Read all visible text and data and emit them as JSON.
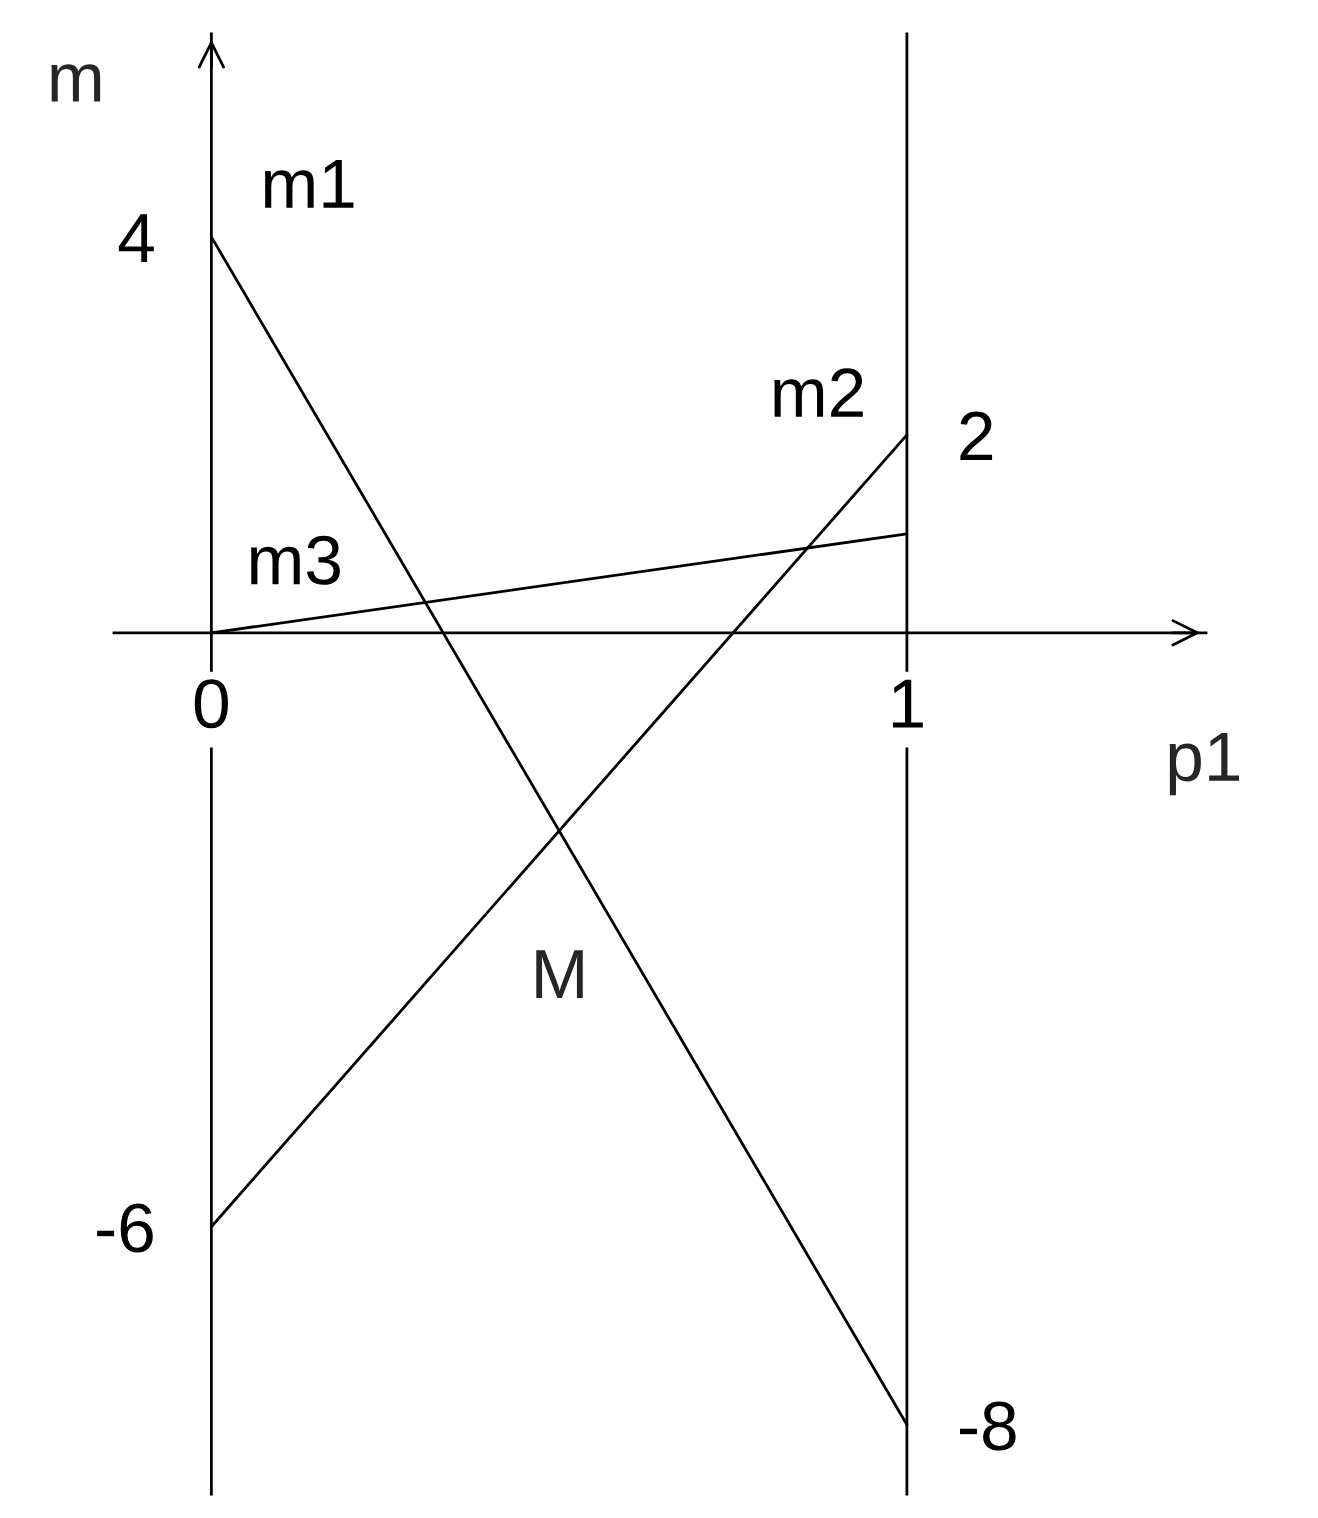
{
  "chart_data": {
    "type": "line",
    "xlabel": "p1",
    "ylabel": "m",
    "x": [
      0,
      1
    ],
    "series": [
      {
        "name": "m1",
        "color": "#000000",
        "values": [
          4,
          -8
        ]
      },
      {
        "name": "m2",
        "color": "#000000",
        "values": [
          -6,
          2
        ]
      },
      {
        "name": "m3",
        "color": "#000000",
        "values": [
          0,
          1
        ]
      }
    ],
    "xlim": [
      -0.14,
      1.43
    ],
    "ylim": [
      -8.7,
      6.05
    ],
    "xticks": [
      0,
      1
    ],
    "yticks": [
      -6,
      4
    ],
    "y2lim": [
      -8.7,
      6.05
    ],
    "y2ticks": [
      -8,
      2
    ],
    "line_style": "solid",
    "annotations": [
      "M"
    ]
  }
}
